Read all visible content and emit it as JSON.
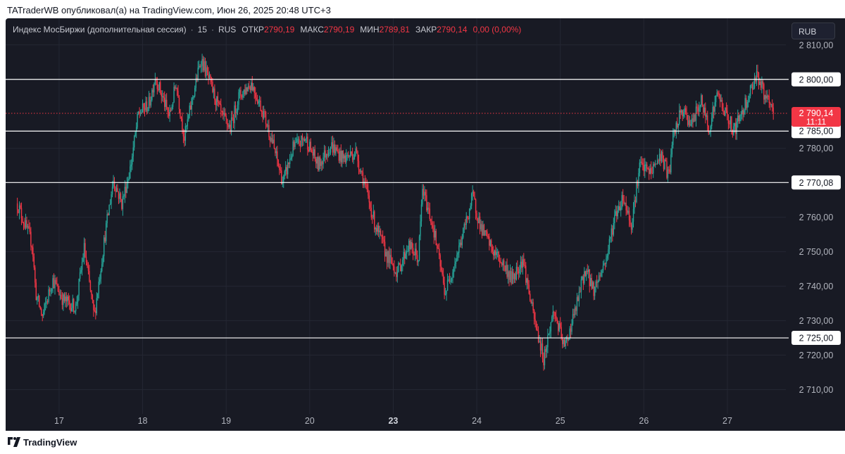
{
  "header": {
    "publish_line": "TATraderWB опубликовал(а) на TradingView.com, Июн 26, 2025 20:48 UTC+3"
  },
  "legend": {
    "symbol": "Индекс МосБиржи (дополнительная сессия)",
    "interval": "15",
    "exchange": "RUS",
    "open_label": "ОТКР",
    "open_value": "2790,19",
    "high_label": "МАКС",
    "high_value": "2790,19",
    "low_label": "МИН",
    "low_value": "2789,81",
    "close_label": "ЗАКР",
    "close_value": "2790,14",
    "change_value": "0,00 (0,00%)"
  },
  "currency_button": "RUB",
  "footer": {
    "brand": "TradingView"
  },
  "colors": {
    "background": "#181a24",
    "up": "#26a69a",
    "down": "#f23645",
    "level_line": "#ffffff",
    "axis_text": "#b2b5be",
    "grid": "#242733"
  },
  "chart_data": {
    "type": "candlestick",
    "ylim": [
      2705,
      2812
    ],
    "y_ticks": [
      "2 810,00",
      "2 780,00",
      "2 760,00",
      "2 750,00",
      "2 740,00",
      "2 730,00",
      "2 720,00",
      "2 710,00"
    ],
    "y_tick_values": [
      2810,
      2780,
      2760,
      2750,
      2740,
      2730,
      2720,
      2710
    ],
    "x_ticks": [
      {
        "label": "17",
        "pos": 0.5,
        "bold": false
      },
      {
        "label": "18",
        "pos": 1.5,
        "bold": false
      },
      {
        "label": "19",
        "pos": 2.5,
        "bold": false
      },
      {
        "label": "20",
        "pos": 3.5,
        "bold": false
      },
      {
        "label": "23",
        "pos": 4.5,
        "bold": true
      },
      {
        "label": "24",
        "pos": 5.5,
        "bold": false
      },
      {
        "label": "25",
        "pos": 6.5,
        "bold": false
      },
      {
        "label": "26",
        "pos": 7.5,
        "bold": false
      },
      {
        "label": "27",
        "pos": 8.5,
        "bold": false
      }
    ],
    "x_range_sessions": [
      -0.14,
      9.2
    ],
    "horizontal_levels": [
      {
        "value": 2800,
        "label": "2 800,00"
      },
      {
        "value": 2785,
        "label": "2 785,00"
      },
      {
        "value": 2770.08,
        "label": "2 770,08"
      },
      {
        "value": 2725,
        "label": "2 725,00"
      }
    ],
    "last_price": {
      "value": 2790.14,
      "label": "2 790,14",
      "countdown": "11:11"
    },
    "price_path": [
      [
        0,
        2764
      ],
      [
        0.18,
        2752
      ],
      [
        0.22,
        2738
      ],
      [
        0.3,
        2731
      ],
      [
        0.42,
        2742
      ],
      [
        0.55,
        2736
      ],
      [
        0.7,
        2734
      ],
      [
        0.8,
        2751
      ],
      [
        0.92,
        2731
      ],
      [
        1.05,
        2755
      ],
      [
        1.15,
        2771
      ],
      [
        1.25,
        2764
      ],
      [
        1.35,
        2774
      ],
      [
        1.45,
        2790
      ],
      [
        1.58,
        2793
      ],
      [
        1.65,
        2801
      ],
      [
        1.72,
        2796
      ],
      [
        1.82,
        2789
      ],
      [
        1.9,
        2799
      ],
      [
        2.0,
        2783
      ],
      [
        2.1,
        2795
      ],
      [
        2.2,
        2806
      ],
      [
        2.32,
        2798
      ],
      [
        2.45,
        2789
      ],
      [
        2.55,
        2786
      ],
      [
        2.65,
        2795
      ],
      [
        2.8,
        2799
      ],
      [
        2.95,
        2790
      ],
      [
        3.05,
        2782
      ],
      [
        3.18,
        2770
      ],
      [
        3.3,
        2780
      ],
      [
        3.45,
        2783
      ],
      [
        3.6,
        2775
      ],
      [
        3.75,
        2781
      ],
      [
        3.9,
        2777
      ],
      [
        4.05,
        2779
      ],
      [
        4.12,
        2773
      ],
      [
        4.28,
        2758
      ],
      [
        4.42,
        2749
      ],
      [
        4.55,
        2744
      ],
      [
        4.68,
        2752
      ],
      [
        4.8,
        2748
      ],
      [
        4.85,
        2768
      ],
      [
        4.98,
        2757
      ],
      [
        5.12,
        2738
      ],
      [
        5.3,
        2752
      ],
      [
        5.45,
        2766
      ],
      [
        5.55,
        2757
      ],
      [
        5.7,
        2750
      ],
      [
        5.8,
        2747
      ],
      [
        5.92,
        2742
      ],
      [
        6.05,
        2748
      ],
      [
        6.18,
        2731
      ],
      [
        6.3,
        2719
      ],
      [
        6.42,
        2733
      ],
      [
        6.55,
        2722
      ],
      [
        6.68,
        2733
      ],
      [
        6.8,
        2745
      ],
      [
        6.9,
        2739
      ],
      [
        7.05,
        2748
      ],
      [
        7.15,
        2760
      ],
      [
        7.25,
        2766
      ],
      [
        7.35,
        2758
      ],
      [
        7.45,
        2775
      ],
      [
        7.58,
        2773
      ],
      [
        7.7,
        2778
      ],
      [
        7.8,
        2772
      ],
      [
        7.85,
        2783
      ],
      [
        7.95,
        2791
      ],
      [
        8.08,
        2787
      ],
      [
        8.18,
        2794
      ],
      [
        8.28,
        2786
      ],
      [
        8.38,
        2796
      ],
      [
        8.48,
        2790
      ],
      [
        8.58,
        2785
      ],
      [
        8.68,
        2791
      ],
      [
        8.78,
        2797
      ],
      [
        8.85,
        2802
      ],
      [
        8.95,
        2795
      ],
      [
        9.05,
        2790.14
      ]
    ]
  }
}
